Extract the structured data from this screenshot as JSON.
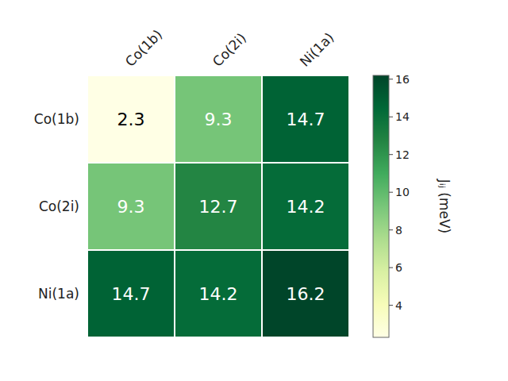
{
  "chart_data": {
    "type": "heatmap",
    "categories": [
      "Co(1b)",
      "Co(2i)",
      "Ni(1a)"
    ],
    "values": [
      [
        2.3,
        9.3,
        14.7
      ],
      [
        9.3,
        12.7,
        14.2
      ],
      [
        14.7,
        14.2,
        16.2
      ]
    ],
    "colorbar_label": "Jᵢⱼ (meV)",
    "colorbar_range": [
      2.3,
      16.2
    ],
    "colorbar_ticks": [
      4,
      6,
      8,
      10,
      12,
      14,
      16
    ],
    "data_labels": true
  }
}
